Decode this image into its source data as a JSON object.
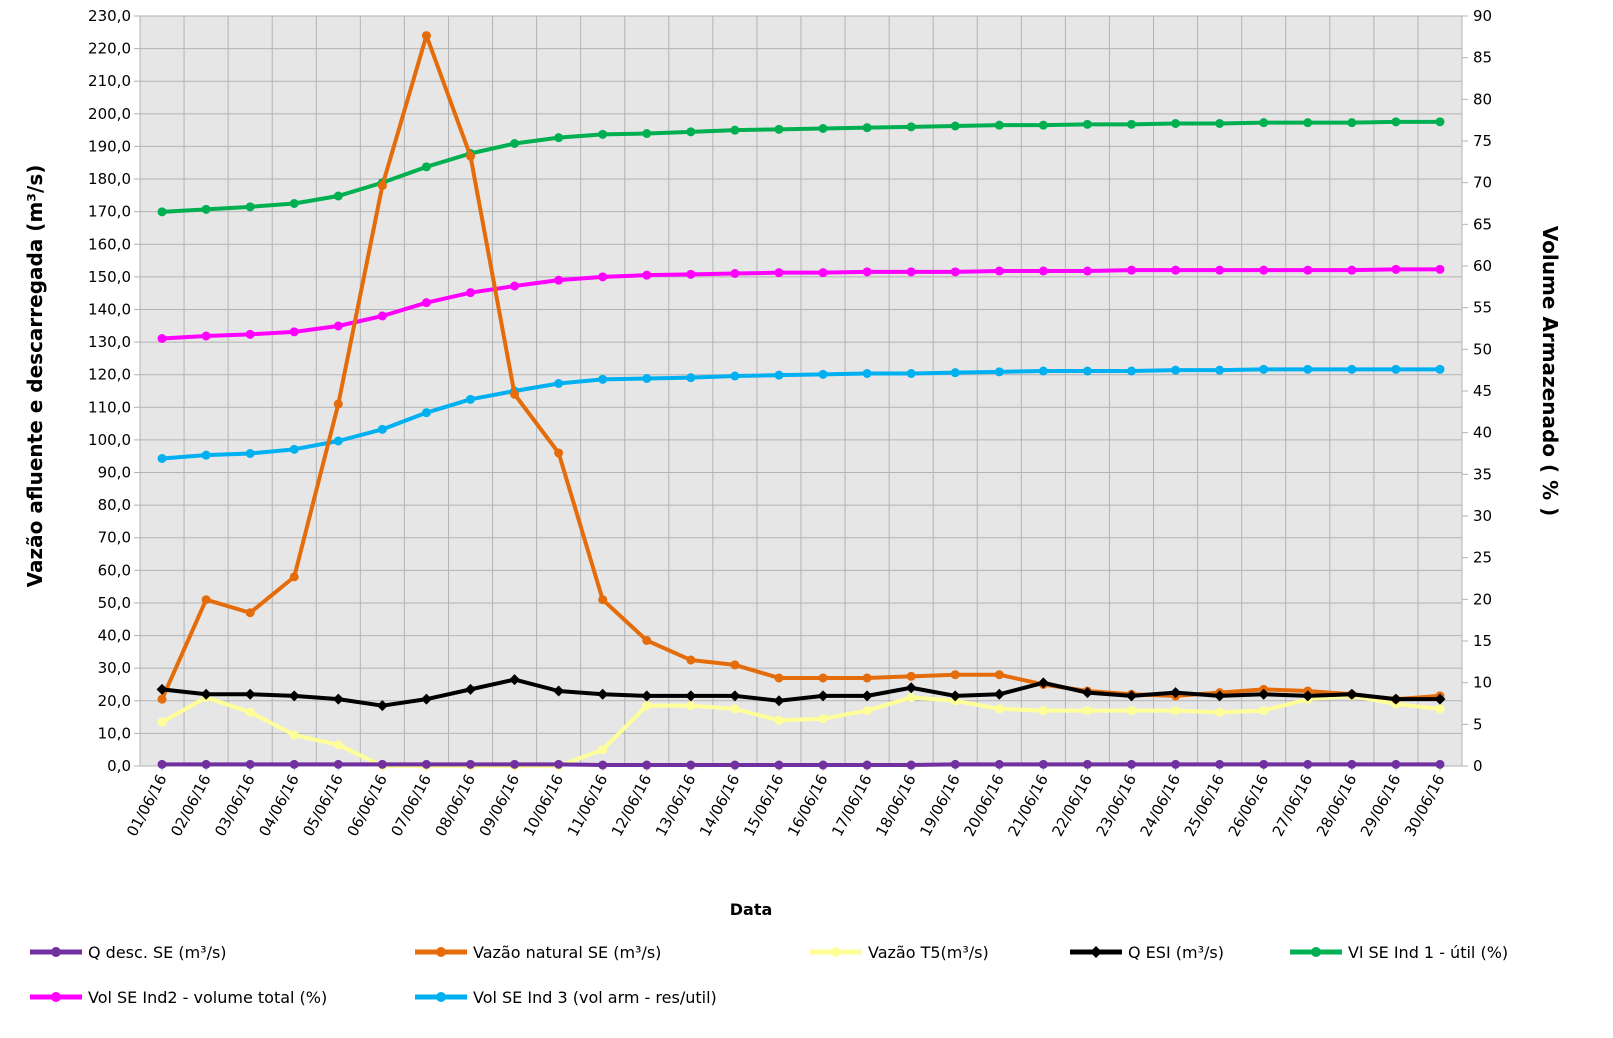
{
  "chart_data": {
    "type": "line",
    "xlabel": "Data",
    "ylabel_left": "Vazão afluente e descarregada (m³/s)",
    "ylabel_right": "Volume Armazenado ( % )",
    "ylim_left": [
      0,
      230
    ],
    "ylim_right": [
      0,
      90
    ],
    "yticks_left": [
      "0,0",
      "10,0",
      "20,0",
      "30,0",
      "40,0",
      "50,0",
      "60,0",
      "70,0",
      "80,0",
      "90,0",
      "100,0",
      "110,0",
      "120,0",
      "130,0",
      "140,0",
      "150,0",
      "160,0",
      "170,0",
      "180,0",
      "190,0",
      "200,0",
      "210,0",
      "220,0",
      "230,0"
    ],
    "yticks_right": [
      "0",
      "5",
      "10",
      "15",
      "20",
      "25",
      "30",
      "35",
      "40",
      "45",
      "50",
      "55",
      "60",
      "65",
      "70",
      "75",
      "80",
      "85",
      "90"
    ],
    "grid": true,
    "legend_position": "bottom",
    "categories": [
      "01/06/16",
      "02/06/16",
      "03/06/16",
      "04/06/16",
      "05/06/16",
      "06/06/16",
      "07/06/16",
      "08/06/16",
      "09/06/16",
      "10/06/16",
      "11/06/16",
      "12/06/16",
      "13/06/16",
      "14/06/16",
      "15/06/16",
      "16/06/16",
      "17/06/16",
      "18/06/16",
      "19/06/16",
      "20/06/16",
      "21/06/16",
      "22/06/16",
      "23/06/16",
      "24/06/16",
      "25/06/16",
      "26/06/16",
      "27/06/16",
      "28/06/16",
      "29/06/16",
      "30/06/16"
    ],
    "series": [
      {
        "name": "Q desc. SE (m³/s)",
        "axis": "left",
        "color": "#7030a0",
        "marker": "circle",
        "values": [
          0.5,
          0.5,
          0.5,
          0.5,
          0.5,
          0.5,
          0.5,
          0.5,
          0.5,
          0.5,
          0.3,
          0.3,
          0.3,
          0.3,
          0.3,
          0.3,
          0.3,
          0.3,
          0.5,
          0.5,
          0.5,
          0.5,
          0.5,
          0.5,
          0.5,
          0.5,
          0.5,
          0.5,
          0.5,
          0.5
        ]
      },
      {
        "name": "Vazão natural SE (m³/s)",
        "axis": "left",
        "color": "#e46c0a",
        "marker": "circle",
        "values": [
          20.5,
          51.0,
          47.0,
          58.0,
          111.0,
          178.0,
          224.0,
          187.0,
          114.0,
          96.0,
          51.0,
          38.5,
          32.5,
          31.0,
          27.0,
          27.0,
          27.0,
          27.5,
          28.0,
          28.0,
          25.0,
          23.0,
          22.0,
          21.5,
          22.5,
          23.5,
          23.0,
          22.0,
          20.5,
          21.5
        ]
      },
      {
        "name": "Vazão T5(m³/s)",
        "axis": "left",
        "color": "#ffff99",
        "marker": "circle",
        "values": [
          13.5,
          21.0,
          16.5,
          9.5,
          6.5,
          0.0,
          0.0,
          0.0,
          0.0,
          0.0,
          5.0,
          18.5,
          18.5,
          17.5,
          14.0,
          14.5,
          17.0,
          21.0,
          20.0,
          17.5,
          17.0,
          17.0,
          17.0,
          17.0,
          16.5,
          17.0,
          20.5,
          21.5,
          19.0,
          17.5
        ]
      },
      {
        "name": "Q ESI (m³/s)",
        "axis": "left",
        "color": "#000000",
        "marker": "diamond",
        "values": [
          23.5,
          22.0,
          22.0,
          21.5,
          20.5,
          18.5,
          20.5,
          23.5,
          26.5,
          23.0,
          22.0,
          21.5,
          21.5,
          21.5,
          20.0,
          21.5,
          21.5,
          24.0,
          21.5,
          22.0,
          25.5,
          22.5,
          21.5,
          22.5,
          21.5,
          22.0,
          21.5,
          22.0,
          20.5,
          20.5
        ]
      },
      {
        "name": "Vl  SE Ind 1 - útil (%)",
        "axis": "right",
        "color": "#00b050",
        "marker": "circle",
        "values": [
          66.5,
          66.8,
          67.1,
          67.5,
          68.4,
          70.0,
          71.9,
          73.5,
          74.7,
          75.4,
          75.8,
          75.9,
          76.1,
          76.3,
          76.4,
          76.5,
          76.6,
          76.7,
          76.8,
          76.9,
          76.9,
          77.0,
          77.0,
          77.1,
          77.1,
          77.2,
          77.2,
          77.2,
          77.3,
          77.3
        ]
      },
      {
        "name": "Vol SE Ind2 - volume total (%)",
        "axis": "right",
        "color": "#ff00ff",
        "marker": "circle",
        "values": [
          51.3,
          51.6,
          51.8,
          52.1,
          52.8,
          54.0,
          55.6,
          56.8,
          57.6,
          58.3,
          58.7,
          58.9,
          59.0,
          59.1,
          59.2,
          59.2,
          59.3,
          59.3,
          59.3,
          59.4,
          59.4,
          59.4,
          59.5,
          59.5,
          59.5,
          59.5,
          59.5,
          59.5,
          59.6,
          59.6
        ]
      },
      {
        "name": "Vol SE Ind 3 (vol arm - res/util)",
        "axis": "right",
        "color": "#00b0f0",
        "marker": "circle",
        "values": [
          36.9,
          37.3,
          37.5,
          38.0,
          39.0,
          40.4,
          42.4,
          44.0,
          45.0,
          45.9,
          46.4,
          46.5,
          46.6,
          46.8,
          46.9,
          47.0,
          47.1,
          47.1,
          47.2,
          47.3,
          47.4,
          47.4,
          47.4,
          47.5,
          47.5,
          47.6,
          47.6,
          47.6,
          47.6,
          47.6
        ]
      }
    ]
  }
}
